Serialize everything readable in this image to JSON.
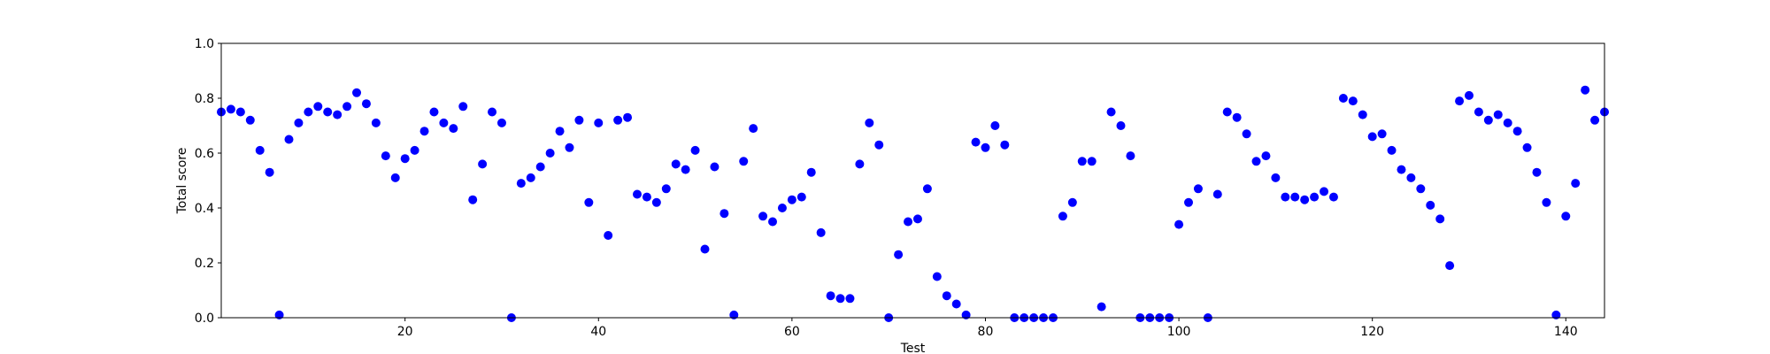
{
  "chart_data": {
    "type": "scatter",
    "xlabel": "Test",
    "ylabel": "Total score",
    "xlim": [
      1,
      144
    ],
    "ylim": [
      0.0,
      1.0
    ],
    "x_ticks": [
      20,
      40,
      60,
      80,
      100,
      120,
      140
    ],
    "y_ticks": [
      0.0,
      0.2,
      0.4,
      0.6,
      0.8,
      1.0
    ],
    "y_tick_labels": [
      "0.0",
      "0.2",
      "0.4",
      "0.6",
      "0.8",
      "1.0"
    ],
    "x_tick_labels": [
      "20",
      "40",
      "60",
      "80",
      "100",
      "120",
      "140"
    ],
    "grid": false,
    "marker_color": "#0000ff",
    "series": [
      {
        "points": [
          [
            1,
            0.75
          ],
          [
            2,
            0.76
          ],
          [
            3,
            0.75
          ],
          [
            4,
            0.72
          ],
          [
            5,
            0.61
          ],
          [
            6,
            0.53
          ],
          [
            7,
            0.01
          ],
          [
            8,
            0.65
          ],
          [
            9,
            0.71
          ],
          [
            10,
            0.75
          ],
          [
            11,
            0.77
          ],
          [
            12,
            0.75
          ],
          [
            13,
            0.74
          ],
          [
            14,
            0.77
          ],
          [
            15,
            0.82
          ],
          [
            16,
            0.78
          ],
          [
            17,
            0.71
          ],
          [
            18,
            0.59
          ],
          [
            19,
            0.51
          ],
          [
            20,
            0.58
          ],
          [
            21,
            0.61
          ],
          [
            22,
            0.68
          ],
          [
            23,
            0.75
          ],
          [
            24,
            0.71
          ],
          [
            25,
            0.69
          ],
          [
            26,
            0.77
          ],
          [
            27,
            0.43
          ],
          [
            28,
            0.56
          ],
          [
            29,
            0.75
          ],
          [
            30,
            0.71
          ],
          [
            31,
            0.0
          ],
          [
            32,
            0.49
          ],
          [
            33,
            0.51
          ],
          [
            34,
            0.55
          ],
          [
            35,
            0.6
          ],
          [
            36,
            0.68
          ],
          [
            37,
            0.62
          ],
          [
            38,
            0.72
          ],
          [
            39,
            0.42
          ],
          [
            40,
            0.71
          ],
          [
            41,
            0.3
          ],
          [
            42,
            0.72
          ],
          [
            43,
            0.73
          ],
          [
            44,
            0.45
          ],
          [
            45,
            0.44
          ],
          [
            46,
            0.42
          ],
          [
            47,
            0.47
          ],
          [
            48,
            0.56
          ],
          [
            49,
            0.54
          ],
          [
            50,
            0.61
          ],
          [
            51,
            0.25
          ],
          [
            52,
            0.55
          ],
          [
            53,
            0.38
          ],
          [
            54,
            0.01
          ],
          [
            55,
            0.57
          ],
          [
            56,
            0.69
          ],
          [
            57,
            0.37
          ],
          [
            58,
            0.35
          ],
          [
            59,
            0.4
          ],
          [
            60,
            0.43
          ],
          [
            61,
            0.44
          ],
          [
            62,
            0.53
          ],
          [
            63,
            0.31
          ],
          [
            64,
            0.08
          ],
          [
            65,
            0.07
          ],
          [
            66,
            0.07
          ],
          [
            67,
            0.56
          ],
          [
            68,
            0.71
          ],
          [
            69,
            0.63
          ],
          [
            70,
            0.0
          ],
          [
            71,
            0.23
          ],
          [
            72,
            0.35
          ],
          [
            73,
            0.36
          ],
          [
            74,
            0.47
          ],
          [
            75,
            0.15
          ],
          [
            76,
            0.08
          ],
          [
            77,
            0.05
          ],
          [
            78,
            0.01
          ],
          [
            79,
            0.64
          ],
          [
            80,
            0.62
          ],
          [
            81,
            0.7
          ],
          [
            82,
            0.63
          ],
          [
            83,
            0.0
          ],
          [
            84,
            0.0
          ],
          [
            85,
            0.0
          ],
          [
            86,
            0.0
          ],
          [
            87,
            0.0
          ],
          [
            88,
            0.37
          ],
          [
            89,
            0.42
          ],
          [
            90,
            0.57
          ],
          [
            91,
            0.57
          ],
          [
            92,
            0.04
          ],
          [
            93,
            0.75
          ],
          [
            94,
            0.7
          ],
          [
            95,
            0.59
          ],
          [
            96,
            0.0
          ],
          [
            97,
            0.0
          ],
          [
            98,
            0.0
          ],
          [
            99,
            0.0
          ],
          [
            100,
            0.34
          ],
          [
            101,
            0.42
          ],
          [
            102,
            0.47
          ],
          [
            103,
            0.0
          ],
          [
            104,
            0.45
          ],
          [
            105,
            0.75
          ],
          [
            106,
            0.73
          ],
          [
            107,
            0.67
          ],
          [
            108,
            0.57
          ],
          [
            109,
            0.59
          ],
          [
            110,
            0.51
          ],
          [
            111,
            0.44
          ],
          [
            112,
            0.44
          ],
          [
            113,
            0.43
          ],
          [
            114,
            0.44
          ],
          [
            115,
            0.46
          ],
          [
            116,
            0.44
          ],
          [
            117,
            0.8
          ],
          [
            118,
            0.79
          ],
          [
            119,
            0.74
          ],
          [
            120,
            0.66
          ],
          [
            121,
            0.67
          ],
          [
            122,
            0.61
          ],
          [
            123,
            0.54
          ],
          [
            124,
            0.51
          ],
          [
            125,
            0.47
          ],
          [
            126,
            0.41
          ],
          [
            127,
            0.36
          ],
          [
            128,
            0.19
          ],
          [
            129,
            0.79
          ],
          [
            130,
            0.81
          ],
          [
            131,
            0.75
          ],
          [
            132,
            0.72
          ],
          [
            133,
            0.74
          ],
          [
            134,
            0.71
          ],
          [
            135,
            0.68
          ],
          [
            136,
            0.62
          ],
          [
            137,
            0.53
          ],
          [
            138,
            0.42
          ],
          [
            139,
            0.01
          ],
          [
            140,
            0.37
          ],
          [
            141,
            0.49
          ],
          [
            142,
            0.83
          ],
          [
            143,
            0.72
          ],
          [
            144,
            0.75
          ]
        ]
      }
    ]
  }
}
